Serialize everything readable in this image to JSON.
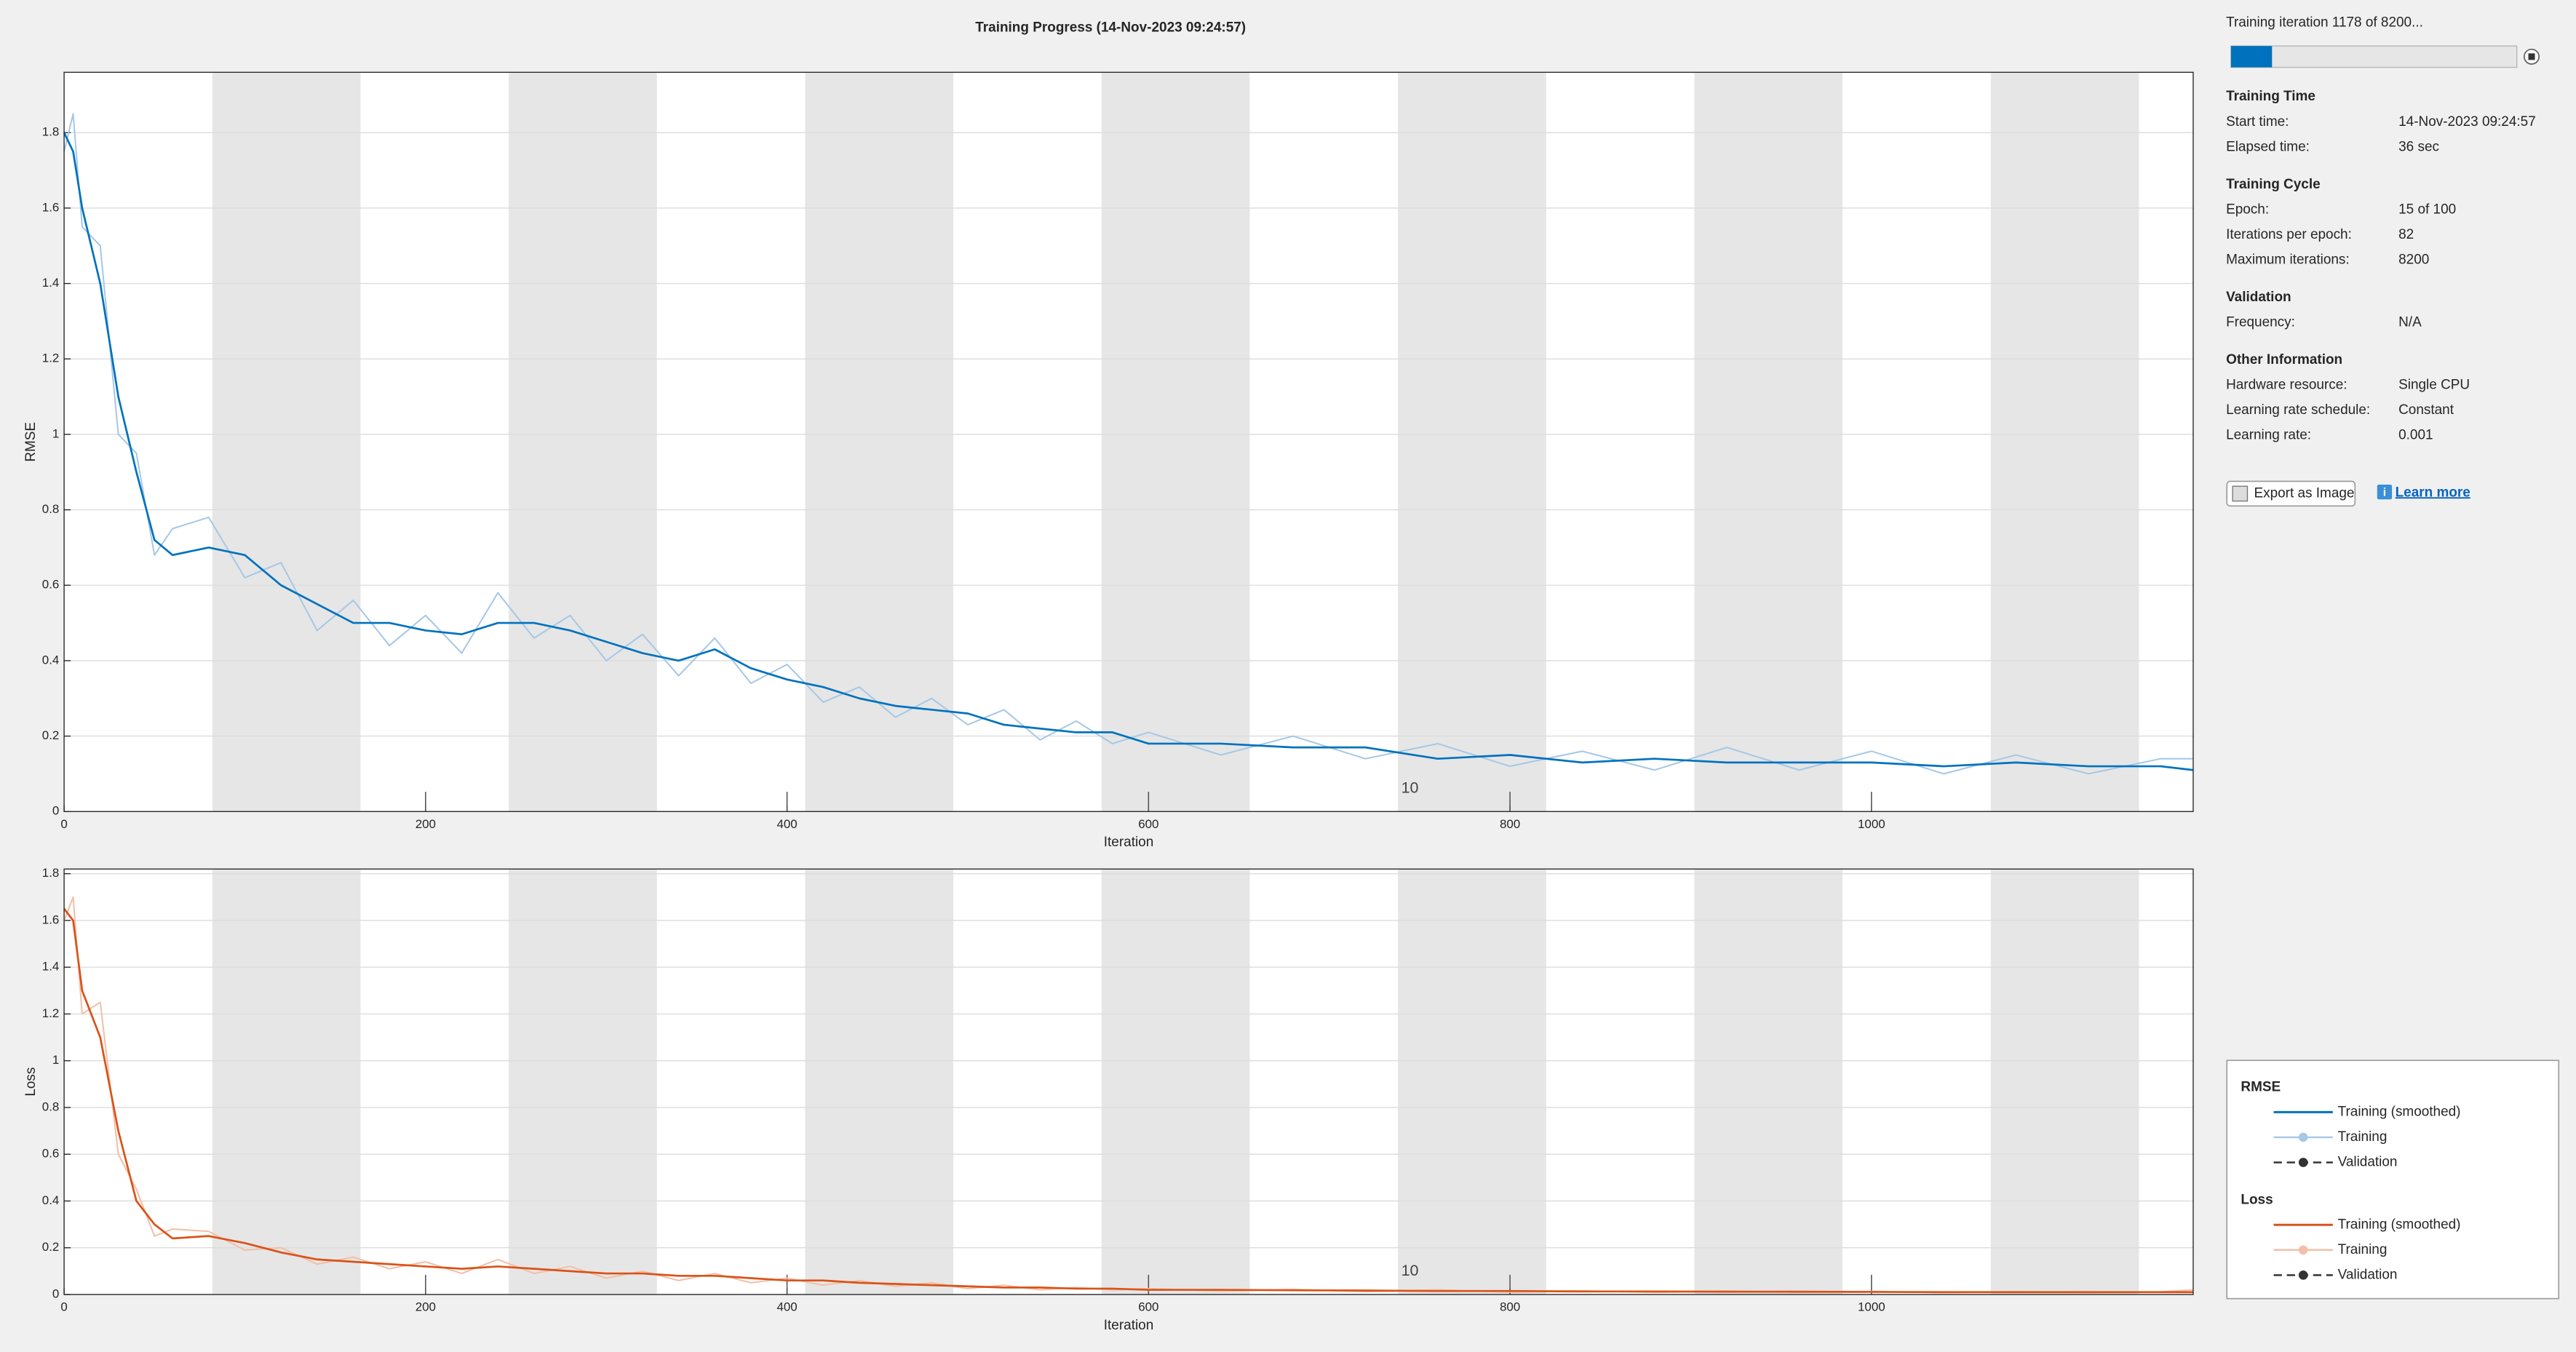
{
  "title": "Training Progress (14-Nov-2023 09:24:57)",
  "chart_data": [
    {
      "type": "line",
      "xlabel": "Iteration",
      "ylabel": "RMSE",
      "x": [
        0,
        5,
        10,
        20,
        30,
        40,
        50,
        60,
        80,
        100,
        120,
        140,
        160,
        180,
        200,
        220,
        240,
        260,
        280,
        300,
        320,
        340,
        360,
        380,
        400,
        420,
        440,
        460,
        480,
        500,
        520,
        540,
        560,
        580,
        600,
        640,
        680,
        720,
        760,
        800,
        840,
        880,
        920,
        960,
        1000,
        1040,
        1080,
        1120,
        1160,
        1178
      ],
      "series": [
        {
          "name": "Training (smoothed)",
          "color": "#0072bd",
          "values": [
            1.8,
            1.75,
            1.6,
            1.4,
            1.1,
            0.9,
            0.72,
            0.68,
            0.7,
            0.68,
            0.6,
            0.55,
            0.5,
            0.5,
            0.48,
            0.47,
            0.5,
            0.5,
            0.48,
            0.45,
            0.42,
            0.4,
            0.43,
            0.38,
            0.35,
            0.33,
            0.3,
            0.28,
            0.27,
            0.26,
            0.23,
            0.22,
            0.21,
            0.21,
            0.18,
            0.18,
            0.17,
            0.17,
            0.14,
            0.15,
            0.13,
            0.14,
            0.13,
            0.13,
            0.13,
            0.12,
            0.13,
            0.12,
            0.12,
            0.11
          ]
        },
        {
          "name": "Training",
          "color": "#a6c8e6",
          "values": [
            1.75,
            1.85,
            1.55,
            1.5,
            1.0,
            0.95,
            0.68,
            0.75,
            0.78,
            0.62,
            0.66,
            0.48,
            0.56,
            0.44,
            0.52,
            0.42,
            0.58,
            0.46,
            0.52,
            0.4,
            0.47,
            0.36,
            0.46,
            0.34,
            0.39,
            0.29,
            0.33,
            0.25,
            0.3,
            0.23,
            0.27,
            0.19,
            0.24,
            0.18,
            0.21,
            0.15,
            0.2,
            0.14,
            0.18,
            0.12,
            0.16,
            0.11,
            0.17,
            0.11,
            0.16,
            0.1,
            0.15,
            0.1,
            0.14,
            0.14
          ]
        }
      ],
      "validation_label": "Validation",
      "xlim": [
        0,
        1178
      ],
      "ylim": [
        0,
        1.96
      ],
      "xticks": [
        0,
        200,
        400,
        600,
        800,
        1000
      ],
      "yticks": [
        0,
        0.2,
        0.4,
        0.6,
        0.8,
        1,
        1.2,
        1.4,
        1.6,
        1.8
      ],
      "grid": true,
      "epoch_bands": [
        [
          82,
          164
        ],
        [
          246,
          328
        ],
        [
          410,
          492
        ],
        [
          574,
          656
        ],
        [
          738,
          820
        ],
        [
          902,
          984
        ],
        [
          1066,
          1148
        ]
      ],
      "epoch_label": {
        "value": 738,
        "label": "10"
      }
    },
    {
      "type": "line",
      "xlabel": "Iteration",
      "ylabel": "Loss",
      "x": [
        0,
        5,
        10,
        20,
        30,
        40,
        50,
        60,
        80,
        100,
        120,
        140,
        160,
        180,
        200,
        220,
        240,
        260,
        280,
        300,
        320,
        340,
        360,
        380,
        400,
        420,
        440,
        460,
        480,
        500,
        520,
        540,
        560,
        580,
        600,
        640,
        680,
        720,
        760,
        800,
        840,
        880,
        920,
        960,
        1000,
        1040,
        1080,
        1120,
        1160,
        1178
      ],
      "series": [
        {
          "name": "Training (smoothed)",
          "color": "#d95319",
          "values": [
            1.65,
            1.6,
            1.3,
            1.1,
            0.7,
            0.4,
            0.3,
            0.24,
            0.25,
            0.22,
            0.18,
            0.15,
            0.14,
            0.13,
            0.12,
            0.11,
            0.12,
            0.11,
            0.1,
            0.09,
            0.09,
            0.08,
            0.08,
            0.07,
            0.06,
            0.06,
            0.05,
            0.045,
            0.04,
            0.035,
            0.03,
            0.03,
            0.025,
            0.025,
            0.02,
            0.02,
            0.018,
            0.017,
            0.015,
            0.015,
            0.013,
            0.013,
            0.012,
            0.012,
            0.011,
            0.01,
            0.01,
            0.01,
            0.01,
            0.01
          ]
        },
        {
          "name": "Training",
          "color": "#f2bfa8",
          "values": [
            1.6,
            1.7,
            1.2,
            1.25,
            0.6,
            0.45,
            0.25,
            0.28,
            0.27,
            0.19,
            0.2,
            0.13,
            0.16,
            0.11,
            0.14,
            0.09,
            0.15,
            0.09,
            0.12,
            0.07,
            0.1,
            0.06,
            0.09,
            0.05,
            0.07,
            0.04,
            0.06,
            0.035,
            0.05,
            0.025,
            0.04,
            0.02,
            0.03,
            0.02,
            0.025,
            0.015,
            0.022,
            0.012,
            0.02,
            0.01,
            0.016,
            0.009,
            0.015,
            0.009,
            0.013,
            0.008,
            0.012,
            0.008,
            0.011,
            0.02
          ]
        }
      ],
      "validation_label": "Validation",
      "xlim": [
        0,
        1178
      ],
      "ylim": [
        0,
        1.82
      ],
      "xticks": [
        0,
        200,
        400,
        600,
        800,
        1000
      ],
      "yticks": [
        0,
        0.2,
        0.4,
        0.6,
        0.8,
        1,
        1.2,
        1.4,
        1.6,
        1.8
      ],
      "grid": true,
      "epoch_bands": [
        [
          82,
          164
        ],
        [
          246,
          328
        ],
        [
          410,
          492
        ],
        [
          574,
          656
        ],
        [
          738,
          820
        ],
        [
          902,
          984
        ],
        [
          1066,
          1148
        ]
      ],
      "epoch_label": {
        "value": 738,
        "label": "10"
      }
    }
  ],
  "panel": {
    "progress_text": "Training iteration 1178 of 8200...",
    "progress": {
      "value": 1178,
      "max": 8200
    },
    "sections": [
      {
        "title": "Training Time",
        "rows": [
          [
            "Start time:",
            "14-Nov-2023 09:24:57"
          ],
          [
            "Elapsed time:",
            "36 sec"
          ]
        ]
      },
      {
        "title": "Training Cycle",
        "rows": [
          [
            "Epoch:",
            "15 of 100"
          ],
          [
            "Iterations per epoch:",
            "82"
          ],
          [
            "Maximum iterations:",
            "8200"
          ]
        ]
      },
      {
        "title": "Validation",
        "rows": [
          [
            "Frequency:",
            "N/A"
          ]
        ]
      },
      {
        "title": "Other Information",
        "rows": [
          [
            "Hardware resource:",
            "Single CPU"
          ],
          [
            "Learning rate schedule:",
            "Constant"
          ],
          [
            "Learning rate:",
            "0.001"
          ]
        ]
      }
    ],
    "export_button": "Export as Image",
    "learn_more": "Learn more"
  }
}
